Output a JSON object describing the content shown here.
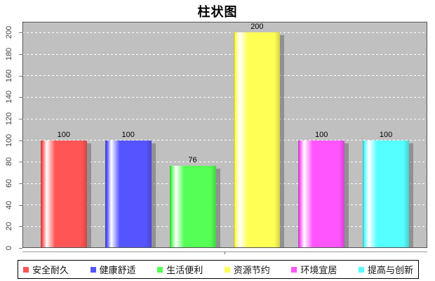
{
  "chart_data": {
    "type": "bar",
    "title": "柱状图",
    "categories": [
      "安全耐久",
      "健康舒适",
      "生活便利",
      "资源节约",
      "环境宜居",
      "提高与创新"
    ],
    "values": [
      100,
      100,
      76,
      200,
      100,
      100
    ],
    "bar_colors": [
      "#FF5555",
      "#5555FF",
      "#55FF55",
      "#FFFF55",
      "#FF55FF",
      "#55FFFF"
    ],
    "value_labels": [
      "100",
      "100",
      "76",
      "200",
      "100",
      "100"
    ],
    "ylim": [
      0,
      210
    ],
    "yticks": [
      0,
      20,
      40,
      60,
      80,
      100,
      120,
      140,
      160,
      180,
      200
    ],
    "grid": "horizontal-white-dashed",
    "legend_position": "bottom",
    "plot_background": "#C0C0C0",
    "gridline_color": "#FFFFFF",
    "shadow_color": "#8E8E8E",
    "title_color": "#000000",
    "tick_label_color": "#3F3F3F"
  }
}
